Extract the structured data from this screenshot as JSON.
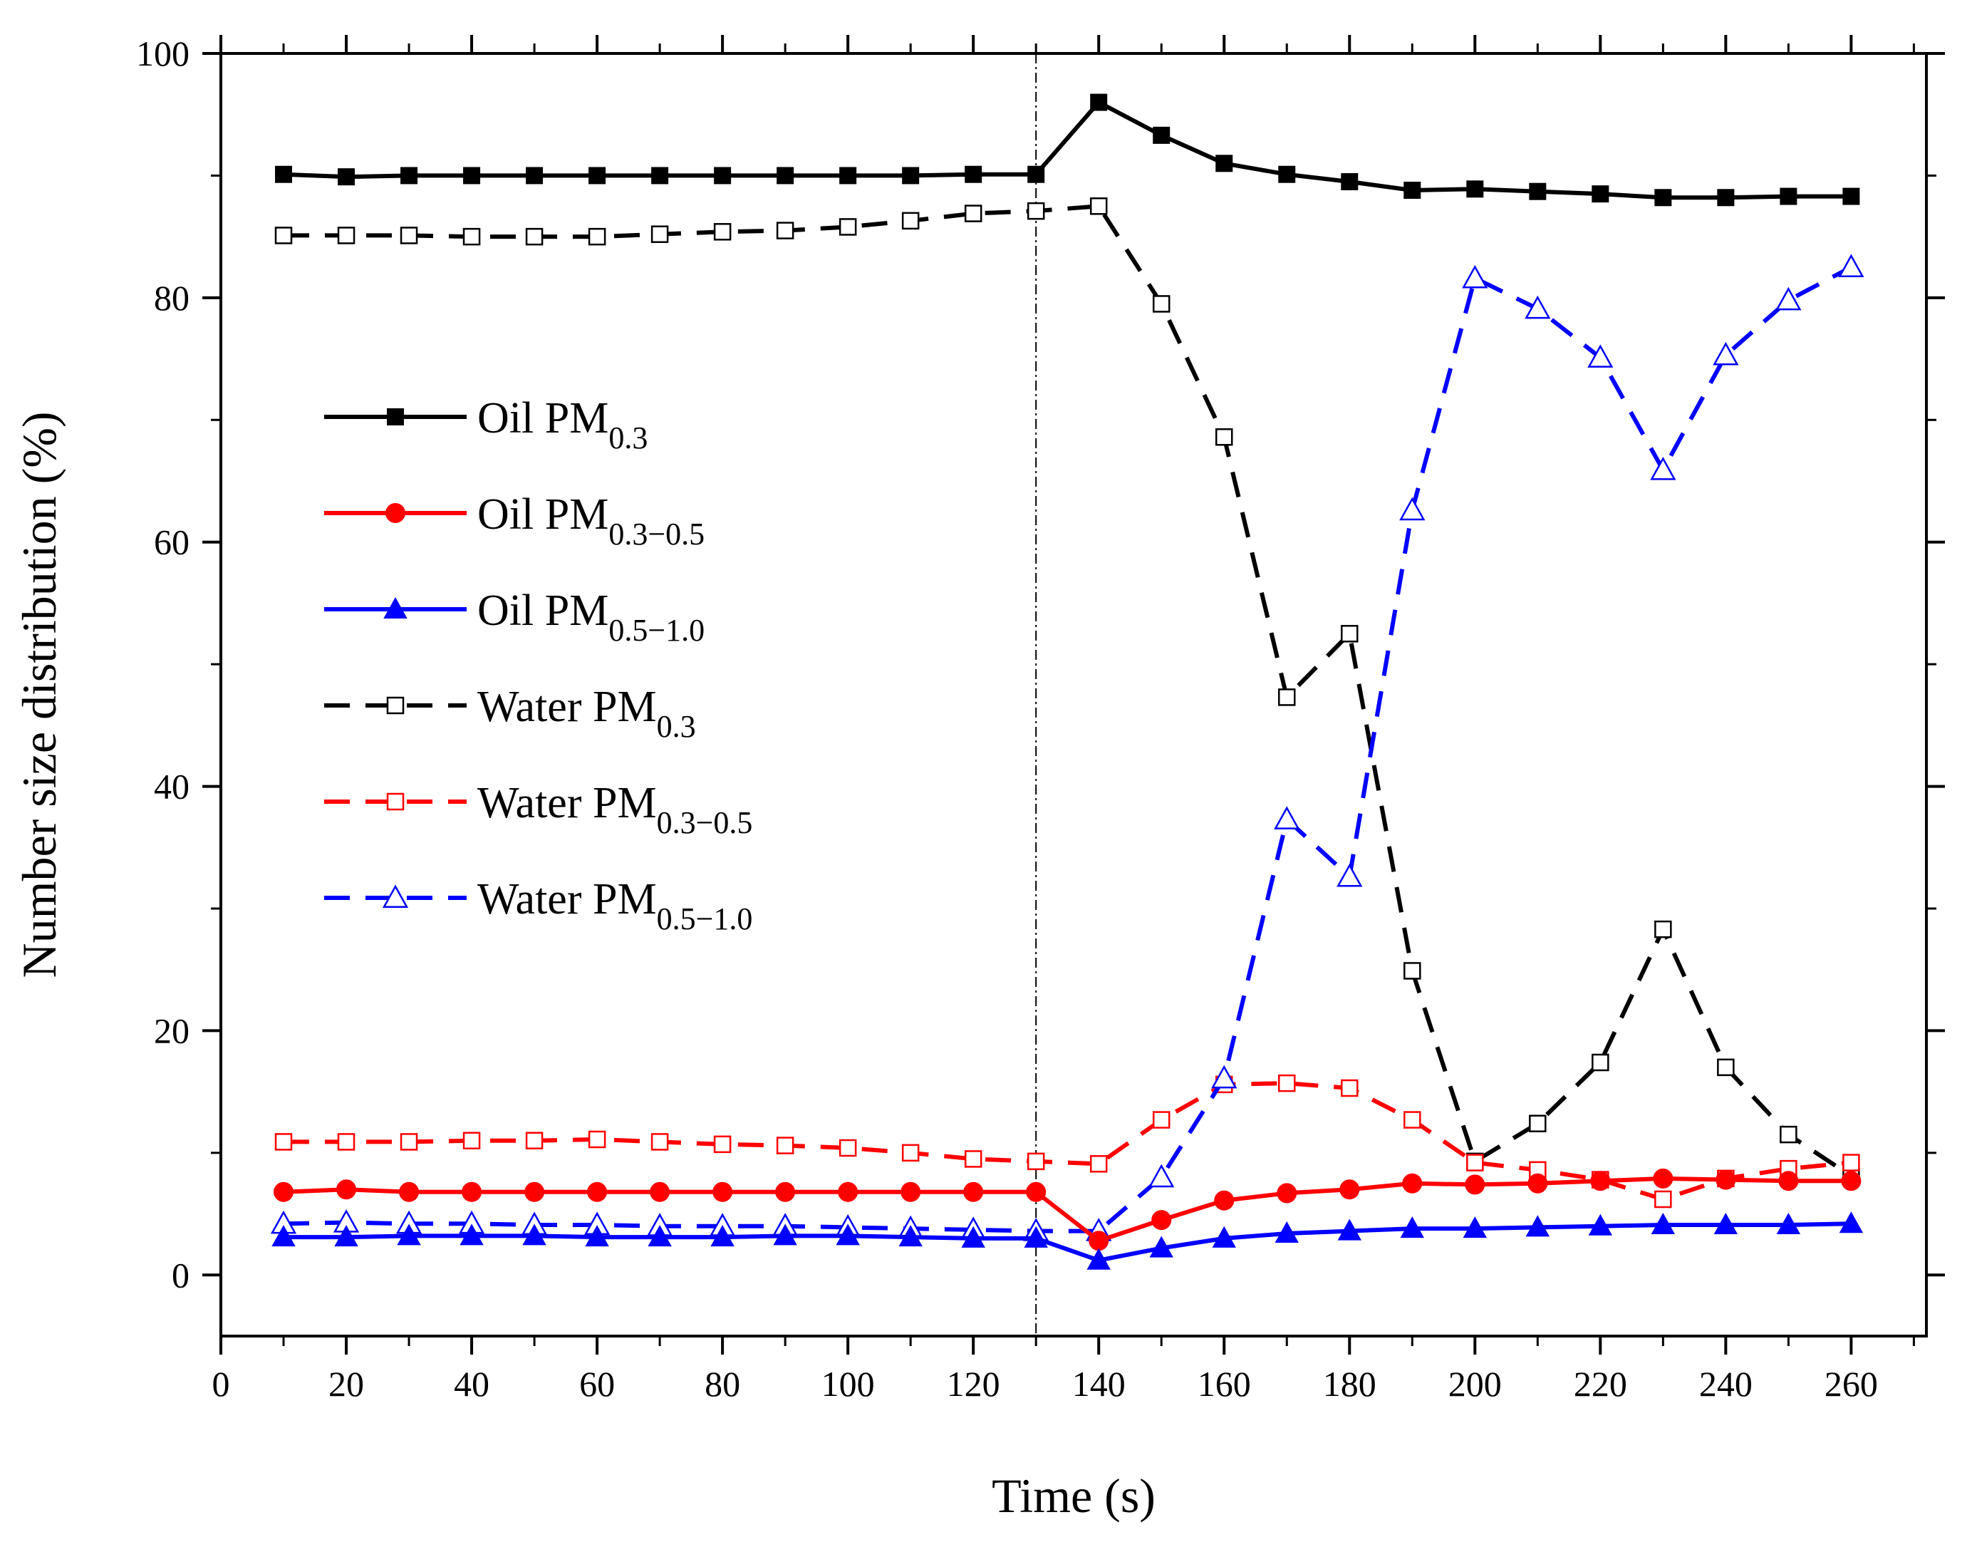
{
  "chart_data": {
    "type": "line",
    "title": "",
    "xlabel": "Time (s)",
    "ylabel": "Number size distribution (%)",
    "xlim": [
      0,
      272
    ],
    "ylim": [
      -5,
      100
    ],
    "x_ticks": [
      0,
      20,
      40,
      60,
      80,
      100,
      120,
      140,
      160,
      180,
      200,
      220,
      240,
      260
    ],
    "y_ticks": [
      0,
      20,
      40,
      60,
      80,
      100
    ],
    "vertical_reference_line": 130,
    "grid": false,
    "legend_position": "left",
    "x": [
      10,
      20,
      30,
      40,
      50,
      60,
      70,
      80,
      90,
      100,
      110,
      120,
      130,
      140,
      150,
      160,
      170,
      180,
      190,
      200,
      210,
      220,
      230,
      240,
      250,
      260
    ],
    "series": [
      {
        "name_main": "Oil PM",
        "name_sub": "0.3",
        "color": "#000000",
        "line_style": "solid",
        "marker": "square-filled",
        "values": [
          90.1,
          89.9,
          90.0,
          90.0,
          90.0,
          90.0,
          90.0,
          90.0,
          90.0,
          90.0,
          90.0,
          90.1,
          90.1,
          96.0,
          93.3,
          91.0,
          90.1,
          89.5,
          88.8,
          88.9,
          88.7,
          88.5,
          88.2,
          88.2,
          88.3,
          88.3
        ]
      },
      {
        "name_main": "Oil PM",
        "name_sub": "0.3−0.5",
        "color": "#ff0000",
        "line_style": "solid",
        "marker": "circle-filled",
        "values": [
          6.8,
          7.0,
          6.8,
          6.8,
          6.8,
          6.8,
          6.8,
          6.8,
          6.8,
          6.8,
          6.8,
          6.8,
          6.8,
          2.8,
          4.5,
          6.1,
          6.7,
          7.0,
          7.5,
          7.4,
          7.5,
          7.7,
          7.9,
          7.8,
          7.7,
          7.7
        ]
      },
      {
        "name_main": "Oil PM",
        "name_sub": "0.5−1.0",
        "color": "#0000ff",
        "line_style": "solid",
        "marker": "triangle-filled",
        "values": [
          3.1,
          3.1,
          3.2,
          3.2,
          3.2,
          3.1,
          3.1,
          3.1,
          3.2,
          3.2,
          3.1,
          3.0,
          3.0,
          1.2,
          2.2,
          3.0,
          3.4,
          3.6,
          3.8,
          3.8,
          3.9,
          4.0,
          4.1,
          4.1,
          4.1,
          4.2
        ]
      },
      {
        "name_main": "Water PM",
        "name_sub": "0.3",
        "color": "#000000",
        "line_style": "dashed",
        "marker": "square-open",
        "values": [
          85.1,
          85.1,
          85.1,
          85.0,
          85.0,
          85.0,
          85.2,
          85.4,
          85.5,
          85.8,
          86.3,
          86.9,
          87.1,
          87.5,
          79.5,
          68.6,
          47.3,
          52.5,
          24.9,
          9.3,
          12.4,
          17.4,
          28.3,
          17.0,
          11.5,
          8.1
        ]
      },
      {
        "name_main": "Water PM",
        "name_sub": "0.3−0.5",
        "color": "#ff0000",
        "line_style": "dashed",
        "marker": "square-open",
        "values": [
          10.9,
          10.9,
          10.9,
          11.0,
          11.0,
          11.1,
          10.9,
          10.7,
          10.6,
          10.4,
          10.0,
          9.5,
          9.3,
          9.1,
          12.7,
          15.6,
          15.7,
          15.3,
          12.7,
          9.2,
          8.6,
          7.8,
          6.2,
          7.9,
          8.7,
          9.2
        ]
      },
      {
        "name_main": "Water PM",
        "name_sub": "0.5−1.0",
        "color": "#0000ff",
        "line_style": "dashed",
        "marker": "triangle-open",
        "values": [
          4.2,
          4.3,
          4.2,
          4.2,
          4.1,
          4.1,
          4.0,
          4.0,
          4.0,
          3.9,
          3.8,
          3.7,
          3.6,
          3.6,
          8.0,
          16.1,
          37.3,
          32.6,
          62.6,
          81.6,
          79.1,
          75.1,
          65.9,
          75.3,
          79.8,
          82.5
        ]
      }
    ]
  }
}
